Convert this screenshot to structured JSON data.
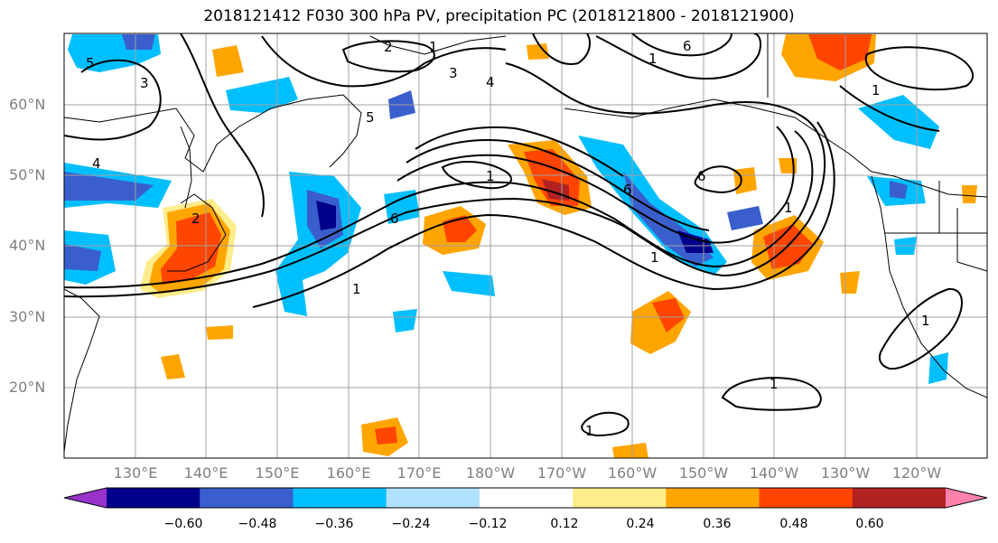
{
  "title": "2018121412 F030 300 hPa PV, precipitation PC (2018121800 - 2018121900)",
  "lat_labels": [
    "60°N",
    "50°N",
    "40°N",
    "30°N",
    "20°N"
  ],
  "lon_labels": [
    "130°E",
    "140°E",
    "150°E",
    "160°E",
    "170°E",
    "180°W",
    "170°W",
    "160°W",
    "150°W",
    "140°W",
    "130°W",
    "120°W"
  ],
  "colorbar": {
    "ticks": [
      "−0.60",
      "−0.48",
      "−0.36",
      "−0.24",
      "−0.12",
      "0.12",
      "0.24",
      "0.36",
      "0.48",
      "0.60"
    ],
    "colors": [
      "#9932cc",
      "#00008b",
      "#3a5fcd",
      "#00bfff",
      "#b0e2ff",
      "#ffffff",
      "#ffec8b",
      "#ffa500",
      "#ff4500",
      "#b22222",
      "#ff82ab"
    ]
  },
  "contour_labels": [
    "1",
    "2",
    "3",
    "4",
    "5",
    "6",
    "1",
    "6",
    "1",
    "6",
    "1",
    "6",
    "1",
    "4",
    "5",
    "1",
    "1",
    "1",
    "2",
    "3",
    "1",
    "1"
  ],
  "chart_data": {
    "type": "map",
    "projection": "cylindrical",
    "lon_range": [
      120,
      250
    ],
    "lat_range": [
      10,
      70
    ],
    "contour_field": "300 hPa PV",
    "contour_levels": [
      1,
      2,
      3,
      4,
      5,
      6
    ],
    "fill_field": "precipitation PC",
    "fill_levels": [
      -0.6,
      -0.48,
      -0.36,
      -0.24,
      -0.12,
      0.12,
      0.24,
      0.36,
      0.48,
      0.6
    ],
    "grid": true
  }
}
